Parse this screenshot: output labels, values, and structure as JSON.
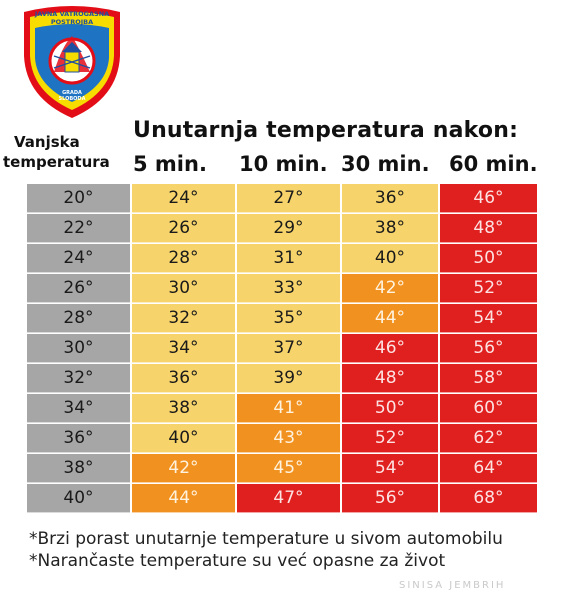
{
  "logo": {
    "text_top": "JAVNA VATROGASNA POSTROJBA",
    "text_bottom": "GRADA SLOBODA",
    "colors": {
      "red": "#e30d17",
      "yellow": "#f7dc00",
      "blue": "#1e74c2",
      "white": "#ffffff"
    }
  },
  "header": {
    "row_label_1": "Vanjska",
    "row_label_2": "temperatura",
    "title": "Unutarnja temperatura nakon:",
    "columns": [
      "5 min.",
      "10 min.",
      "30 min.",
      "60 min."
    ]
  },
  "table": {
    "rows": [
      {
        "outside": "20°",
        "values": [
          "24°",
          "27°",
          "36°",
          "46°"
        ],
        "colors": [
          "yellow",
          "yellow",
          "yellow",
          "red"
        ]
      },
      {
        "outside": "22°",
        "values": [
          "26°",
          "29°",
          "38°",
          "48°"
        ],
        "colors": [
          "yellow",
          "yellow",
          "yellow",
          "red"
        ]
      },
      {
        "outside": "24°",
        "values": [
          "28°",
          "31°",
          "40°",
          "50°"
        ],
        "colors": [
          "yellow",
          "yellow",
          "yellow",
          "red"
        ]
      },
      {
        "outside": "26°",
        "values": [
          "30°",
          "33°",
          "42°",
          "52°"
        ],
        "colors": [
          "yellow",
          "yellow",
          "orange",
          "red"
        ]
      },
      {
        "outside": "28°",
        "values": [
          "32°",
          "35°",
          "44°",
          "54°"
        ],
        "colors": [
          "yellow",
          "yellow",
          "orange",
          "red"
        ]
      },
      {
        "outside": "30°",
        "values": [
          "34°",
          "37°",
          "46°",
          "56°"
        ],
        "colors": [
          "yellow",
          "yellow",
          "red",
          "red"
        ]
      },
      {
        "outside": "32°",
        "values": [
          "36°",
          "39°",
          "48°",
          "58°"
        ],
        "colors": [
          "yellow",
          "yellow",
          "red",
          "red"
        ]
      },
      {
        "outside": "34°",
        "values": [
          "38°",
          "41°",
          "50°",
          "60°"
        ],
        "colors": [
          "yellow",
          "orange",
          "red",
          "red"
        ]
      },
      {
        "outside": "36°",
        "values": [
          "40°",
          "43°",
          "52°",
          "62°"
        ],
        "colors": [
          "yellow",
          "orange",
          "red",
          "red"
        ]
      },
      {
        "outside": "38°",
        "values": [
          "42°",
          "45°",
          "54°",
          "64°"
        ],
        "colors": [
          "orange",
          "orange",
          "red",
          "red"
        ]
      },
      {
        "outside": "40°",
        "values": [
          "44°",
          "47°",
          "56°",
          "68°"
        ],
        "colors": [
          "orange",
          "red",
          "red",
          "red"
        ]
      }
    ],
    "color_legend": {
      "grey": "#a6a6a6",
      "yellow": "#f6d46b",
      "orange": "#f1911f",
      "red": "#e01f1f"
    }
  },
  "notes": [
    "*Brzi porast unutarnje temperature u sivom automobilu",
    "*Narančaste temperature su već opasne za život"
  ],
  "signature": "SINISA JEMBRIH"
}
